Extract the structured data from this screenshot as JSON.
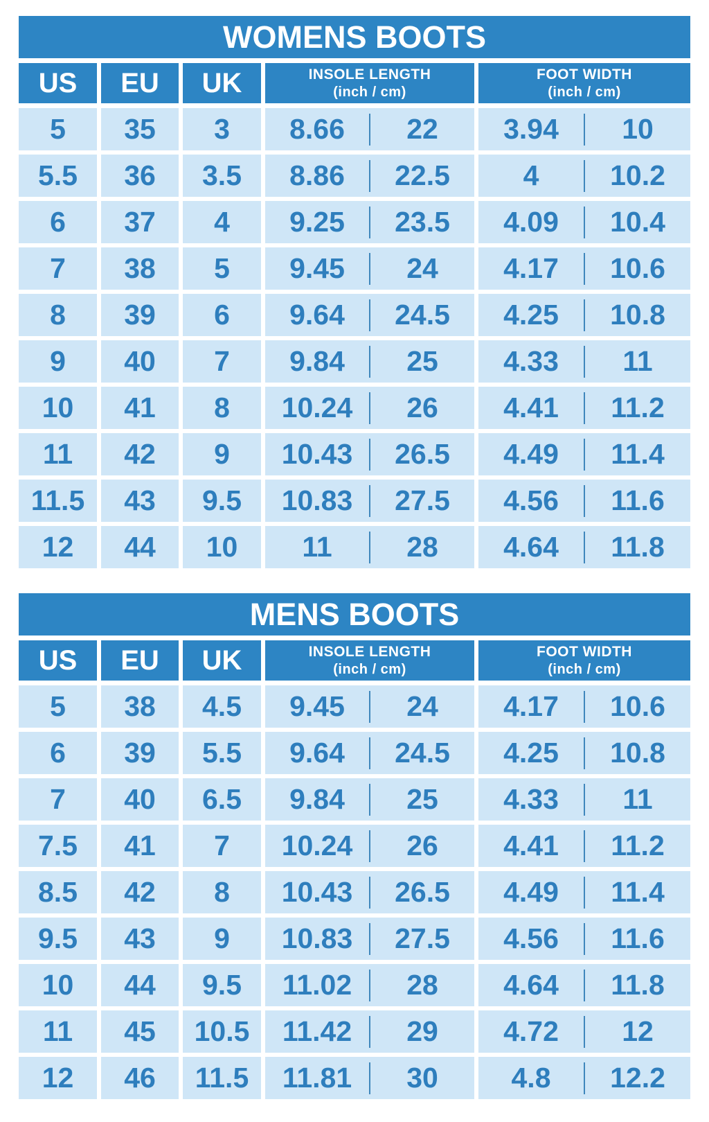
{
  "colors": {
    "header_blue": "#2d85c4",
    "cell_blue": "#cfe6f7",
    "value_blue": "#2e7ebd",
    "divider_blue": "#3f87bc",
    "background": "#ffffff",
    "title_text": "#ffffff"
  },
  "tables": [
    {
      "title": "WOMENS BOOTS",
      "headers": {
        "us": "US",
        "eu": "EU",
        "uk": "UK",
        "insole_line1": "INSOLE LENGTH",
        "insole_line2": "(inch / cm)",
        "foot_line1": "FOOT WIDTH",
        "foot_line2": "(inch / cm)"
      },
      "rows": [
        {
          "us": "5",
          "eu": "35",
          "uk": "3",
          "insole_in": "8.66",
          "insole_cm": "22",
          "width_in": "3.94",
          "width_cm": "10"
        },
        {
          "us": "5.5",
          "eu": "36",
          "uk": "3.5",
          "insole_in": "8.86",
          "insole_cm": "22.5",
          "width_in": "4",
          "width_cm": "10.2"
        },
        {
          "us": "6",
          "eu": "37",
          "uk": "4",
          "insole_in": "9.25",
          "insole_cm": "23.5",
          "width_in": "4.09",
          "width_cm": "10.4"
        },
        {
          "us": "7",
          "eu": "38",
          "uk": "5",
          "insole_in": "9.45",
          "insole_cm": "24",
          "width_in": "4.17",
          "width_cm": "10.6"
        },
        {
          "us": "8",
          "eu": "39",
          "uk": "6",
          "insole_in": "9.64",
          "insole_cm": "24.5",
          "width_in": "4.25",
          "width_cm": "10.8"
        },
        {
          "us": "9",
          "eu": "40",
          "uk": "7",
          "insole_in": "9.84",
          "insole_cm": "25",
          "width_in": "4.33",
          "width_cm": "11"
        },
        {
          "us": "10",
          "eu": "41",
          "uk": "8",
          "insole_in": "10.24",
          "insole_cm": "26",
          "width_in": "4.41",
          "width_cm": "11.2"
        },
        {
          "us": "11",
          "eu": "42",
          "uk": "9",
          "insole_in": "10.43",
          "insole_cm": "26.5",
          "width_in": "4.49",
          "width_cm": "11.4"
        },
        {
          "us": "11.5",
          "eu": "43",
          "uk": "9.5",
          "insole_in": "10.83",
          "insole_cm": "27.5",
          "width_in": "4.56",
          "width_cm": "11.6"
        },
        {
          "us": "12",
          "eu": "44",
          "uk": "10",
          "insole_in": "11",
          "insole_cm": "28",
          "width_in": "4.64",
          "width_cm": "11.8"
        }
      ]
    },
    {
      "title": "MENS BOOTS",
      "headers": {
        "us": "US",
        "eu": "EU",
        "uk": "UK",
        "insole_line1": "INSOLE LENGTH",
        "insole_line2": "(inch / cm)",
        "foot_line1": "FOOT WIDTH",
        "foot_line2": "(inch / cm)"
      },
      "rows": [
        {
          "us": "5",
          "eu": "38",
          "uk": "4.5",
          "insole_in": "9.45",
          "insole_cm": "24",
          "width_in": "4.17",
          "width_cm": "10.6"
        },
        {
          "us": "6",
          "eu": "39",
          "uk": "5.5",
          "insole_in": "9.64",
          "insole_cm": "24.5",
          "width_in": "4.25",
          "width_cm": "10.8"
        },
        {
          "us": "7",
          "eu": "40",
          "uk": "6.5",
          "insole_in": "9.84",
          "insole_cm": "25",
          "width_in": "4.33",
          "width_cm": "11"
        },
        {
          "us": "7.5",
          "eu": "41",
          "uk": "7",
          "insole_in": "10.24",
          "insole_cm": "26",
          "width_in": "4.41",
          "width_cm": "11.2"
        },
        {
          "us": "8.5",
          "eu": "42",
          "uk": "8",
          "insole_in": "10.43",
          "insole_cm": "26.5",
          "width_in": "4.49",
          "width_cm": "11.4"
        },
        {
          "us": "9.5",
          "eu": "43",
          "uk": "9",
          "insole_in": "10.83",
          "insole_cm": "27.5",
          "width_in": "4.56",
          "width_cm": "11.6"
        },
        {
          "us": "10",
          "eu": "44",
          "uk": "9.5",
          "insole_in": "11.02",
          "insole_cm": "28",
          "width_in": "4.64",
          "width_cm": "11.8"
        },
        {
          "us": "11",
          "eu": "45",
          "uk": "10.5",
          "insole_in": "11.42",
          "insole_cm": "29",
          "width_in": "4.72",
          "width_cm": "12"
        },
        {
          "us": "12",
          "eu": "46",
          "uk": "11.5",
          "insole_in": "11.81",
          "insole_cm": "30",
          "width_in": "4.8",
          "width_cm": "12.2"
        }
      ]
    }
  ],
  "chart_data": [
    {
      "type": "table",
      "title": "WOMENS BOOTS",
      "columns": [
        "US",
        "EU",
        "UK",
        "INSOLE LENGTH (inch)",
        "INSOLE LENGTH (cm)",
        "FOOT WIDTH (inch)",
        "FOOT WIDTH (cm)"
      ],
      "rows": [
        [
          "5",
          "35",
          "3",
          "8.66",
          "22",
          "3.94",
          "10"
        ],
        [
          "5.5",
          "36",
          "3.5",
          "8.86",
          "22.5",
          "4",
          "10.2"
        ],
        [
          "6",
          "37",
          "4",
          "9.25",
          "23.5",
          "4.09",
          "10.4"
        ],
        [
          "7",
          "38",
          "5",
          "9.45",
          "24",
          "4.17",
          "10.6"
        ],
        [
          "8",
          "39",
          "6",
          "9.64",
          "24.5",
          "4.25",
          "10.8"
        ],
        [
          "9",
          "40",
          "7",
          "9.84",
          "25",
          "4.33",
          "11"
        ],
        [
          "10",
          "41",
          "8",
          "10.24",
          "26",
          "4.41",
          "11.2"
        ],
        [
          "11",
          "42",
          "9",
          "10.43",
          "26.5",
          "4.49",
          "11.4"
        ],
        [
          "11.5",
          "43",
          "9.5",
          "10.83",
          "27.5",
          "4.56",
          "11.6"
        ],
        [
          "12",
          "44",
          "10",
          "11",
          "28",
          "4.64",
          "11.8"
        ]
      ]
    },
    {
      "type": "table",
      "title": "MENS BOOTS",
      "columns": [
        "US",
        "EU",
        "UK",
        "INSOLE LENGTH (inch)",
        "INSOLE LENGTH (cm)",
        "FOOT WIDTH (inch)",
        "FOOT WIDTH (cm)"
      ],
      "rows": [
        [
          "5",
          "38",
          "4.5",
          "9.45",
          "24",
          "4.17",
          "10.6"
        ],
        [
          "6",
          "39",
          "5.5",
          "9.64",
          "24.5",
          "4.25",
          "10.8"
        ],
        [
          "7",
          "40",
          "6.5",
          "9.84",
          "25",
          "4.33",
          "11"
        ],
        [
          "7.5",
          "41",
          "7",
          "10.24",
          "26",
          "4.41",
          "11.2"
        ],
        [
          "8.5",
          "42",
          "8",
          "10.43",
          "26.5",
          "4.49",
          "11.4"
        ],
        [
          "9.5",
          "43",
          "9",
          "10.83",
          "27.5",
          "4.56",
          "11.6"
        ],
        [
          "10",
          "44",
          "9.5",
          "11.02",
          "28",
          "4.64",
          "11.8"
        ],
        [
          "11",
          "45",
          "10.5",
          "11.42",
          "29",
          "4.72",
          "12"
        ],
        [
          "12",
          "46",
          "11.5",
          "11.81",
          "30",
          "4.8",
          "12.2"
        ]
      ]
    }
  ]
}
